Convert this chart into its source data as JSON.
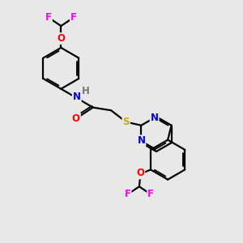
{
  "bg_color": "#e8e8e8",
  "bond_color": "#000000",
  "bond_width": 1.6,
  "atom_colors": {
    "N": "#0000ff",
    "O": "#ff0000",
    "S": "#ccaa00",
    "F": "#ff00ff",
    "H": "#777777",
    "C": "#000000"
  },
  "font_size": 8.5,
  "figsize": [
    3.0,
    3.0
  ],
  "dpi": 100,
  "xlim": [
    0,
    10
  ],
  "ylim": [
    0,
    10
  ]
}
